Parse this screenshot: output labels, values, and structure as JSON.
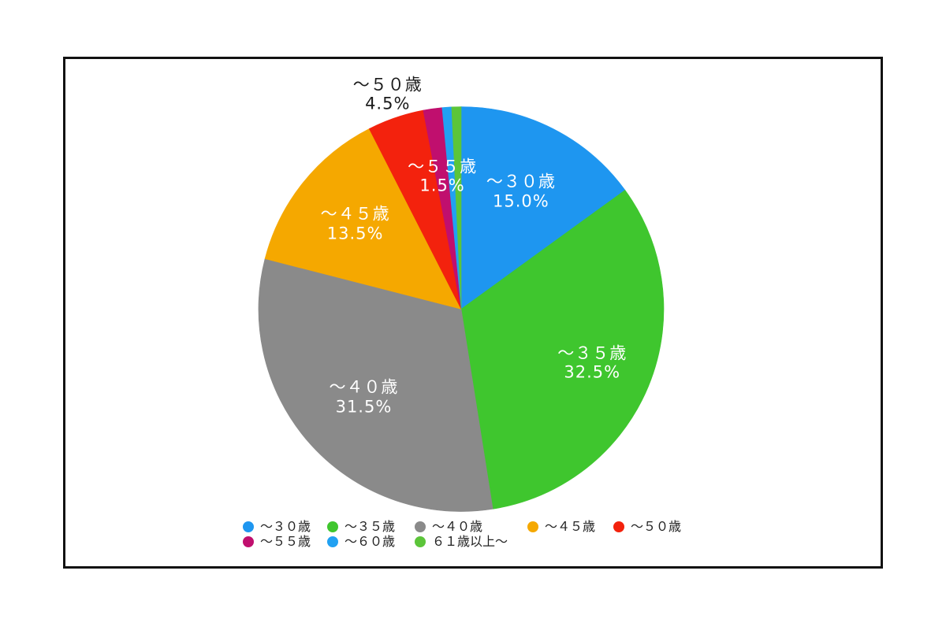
{
  "chart_data": {
    "type": "pie",
    "title": "",
    "unit": "%",
    "start_angle": "12-oclock",
    "direction": "clockwise",
    "legend_position": "bottom-left",
    "legend_rows": [
      [
        0,
        1,
        2,
        3,
        4
      ],
      [
        5,
        6,
        7
      ]
    ],
    "slices": [
      {
        "label": "～３０歳",
        "value": 15.0,
        "pct_label": "15.0%",
        "color": "#1E96F0",
        "label_color": "#FFFFFF",
        "label_d": 0.65,
        "label_outside": false
      },
      {
        "label": "～３５歳",
        "value": 32.5,
        "pct_label": "32.5%",
        "color": "#3FC62E",
        "label_color": "#FFFFFF",
        "label_d": 0.7,
        "label_outside": false
      },
      {
        "label": "～４０歳",
        "value": 31.5,
        "pct_label": "31.5%",
        "color": "#8A8A8A",
        "label_color": "#FFFFFF",
        "label_d": 0.65,
        "label_outside": false
      },
      {
        "label": "～４５歳",
        "value": 13.5,
        "pct_label": "13.5%",
        "color": "#F5A800",
        "label_color": "#FFFFFF",
        "label_d": 0.67,
        "label_outside": false
      },
      {
        "label": "～５０歳",
        "value": 4.5,
        "pct_label": "4.5%",
        "color": "#F3220D",
        "label_color": "#1A1A1A",
        "label_d": 1.12,
        "label_outside": true
      },
      {
        "label": "～５５歳",
        "value": 1.5,
        "pct_label": "1.5%",
        "color": "#C00F6E",
        "label_color": "#FFFFFF",
        "label_d": 0.66,
        "label_outside": false
      },
      {
        "label": "～６０歳",
        "value": 0.75,
        "pct_label": null,
        "color": "#21A1F2",
        "label_color": null,
        "label_d": null,
        "label_outside": false
      },
      {
        "label": "６１歳以上～",
        "value": 0.75,
        "pct_label": null,
        "color": "#5CC53A",
        "label_color": null,
        "label_d": null,
        "label_outside": false
      }
    ]
  }
}
